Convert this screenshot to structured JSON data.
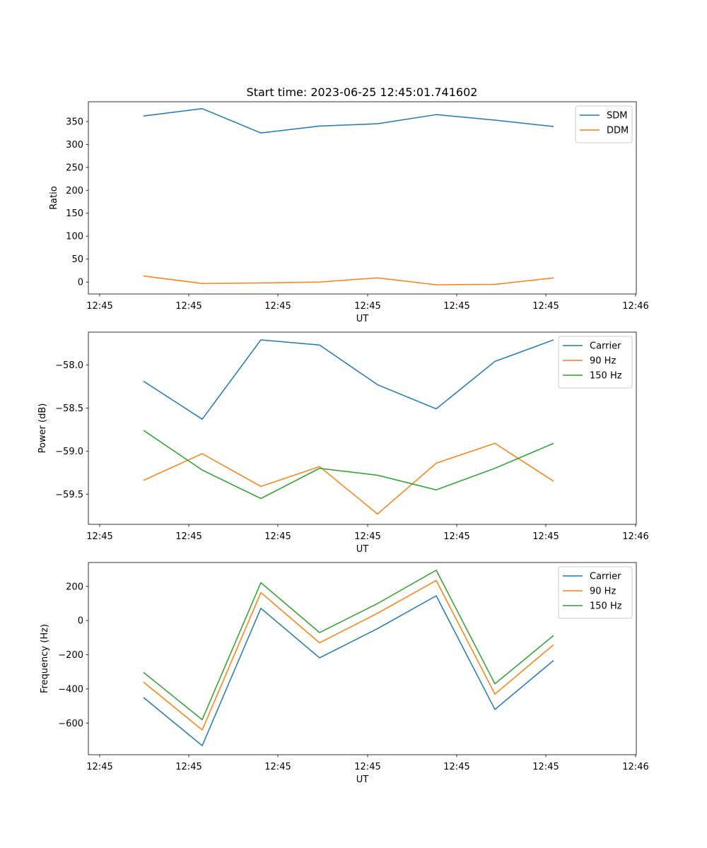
{
  "figure": {
    "title": "Start time: 2023-06-25 12:45:01.741602"
  },
  "chart_data": [
    {
      "type": "line",
      "xlabel": "UT",
      "ylabel": "Ratio",
      "x_tick_labels": [
        "12:45",
        "12:45",
        "12:45",
        "12:45",
        "12:45",
        "12:45",
        "12:46"
      ],
      "ylim": [
        -26,
        393
      ],
      "y_ticks": [
        0,
        50,
        100,
        150,
        200,
        250,
        300,
        350
      ],
      "legend_position": "upper-right",
      "grid": false,
      "series": [
        {
          "name": "SDM",
          "color": "#1f77b4",
          "values": [
            362,
            378,
            325,
            340,
            345,
            365,
            353,
            339
          ]
        },
        {
          "name": "DDM",
          "color": "#ff7f0e",
          "values": [
            13,
            -3,
            -2,
            0,
            9,
            -6,
            -5,
            9
          ]
        }
      ]
    },
    {
      "type": "line",
      "xlabel": "UT",
      "ylabel": "Power (dB)",
      "x_tick_labels": [
        "12:45",
        "12:45",
        "12:45",
        "12:45",
        "12:45",
        "12:45",
        "12:46"
      ],
      "ylim": [
        -59.85,
        -57.62
      ],
      "y_ticks": [
        -59.5,
        -59.0,
        -58.5,
        -58.0
      ],
      "y_tick_labels": [
        "−59.5",
        "−59.0",
        "−58.5",
        "−58.0"
      ],
      "legend_position": "upper-right",
      "grid": false,
      "series": [
        {
          "name": "Carrier",
          "color": "#1f77b4",
          "values": [
            -58.19,
            -58.63,
            -57.71,
            -57.77,
            -58.23,
            -58.51,
            -57.96,
            -57.71
          ]
        },
        {
          "name": "90 Hz",
          "color": "#ff7f0e",
          "values": [
            -59.34,
            -59.03,
            -59.41,
            -59.18,
            -59.73,
            -59.14,
            -58.91,
            -59.35
          ]
        },
        {
          "name": "150 Hz",
          "color": "#2ca02c",
          "values": [
            -58.76,
            -59.22,
            -59.55,
            -59.2,
            -59.28,
            -59.45,
            -59.2,
            -58.91
          ]
        }
      ]
    },
    {
      "type": "line",
      "xlabel": "UT",
      "ylabel": "Frequency (Hz)",
      "x_tick_labels": [
        "12:45",
        "12:45",
        "12:45",
        "12:45",
        "12:45",
        "12:45",
        "12:46"
      ],
      "ylim": [
        -785,
        340
      ],
      "y_ticks": [
        -600,
        -400,
        -200,
        0,
        200
      ],
      "y_tick_labels": [
        "−600",
        "−400",
        "−200",
        "0",
        "200"
      ],
      "legend_position": "upper-right",
      "grid": false,
      "series": [
        {
          "name": "Carrier",
          "color": "#1f77b4",
          "values": [
            -450,
            -732,
            72,
            -218,
            -47,
            145,
            -520,
            -233
          ]
        },
        {
          "name": "90 Hz",
          "color": "#ff7f0e",
          "values": [
            -360,
            -640,
            164,
            -130,
            43,
            235,
            -430,
            -141
          ]
        },
        {
          "name": "150 Hz",
          "color": "#2ca02c",
          "values": [
            -303,
            -580,
            222,
            -70,
            100,
            295,
            -370,
            -87
          ]
        }
      ]
    }
  ]
}
